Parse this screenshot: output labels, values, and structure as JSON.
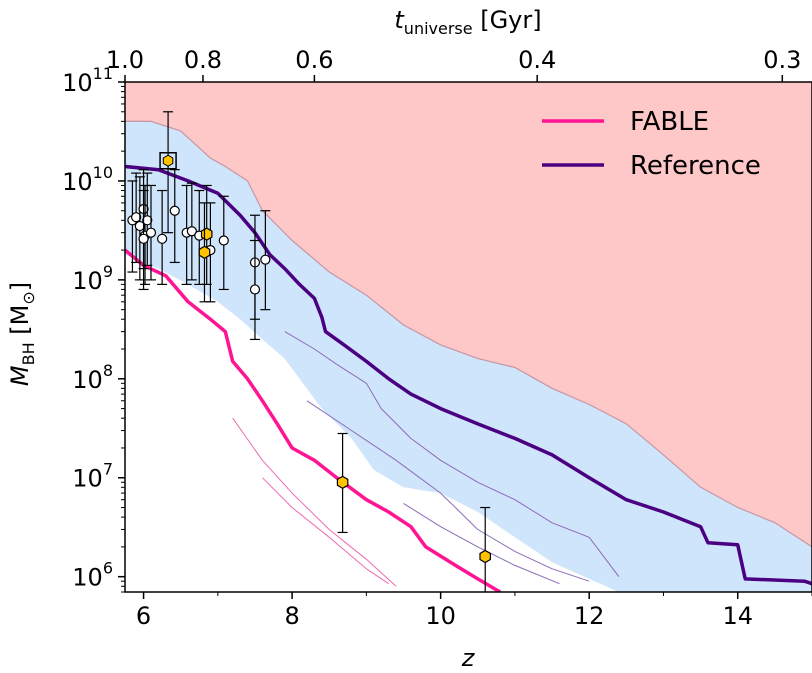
{
  "chart_data": {
    "type": "line",
    "x_axis": {
      "label": "z",
      "range": [
        5.75,
        15.0
      ],
      "ticks": [
        {
          "value": 6,
          "label": "6"
        },
        {
          "value": 8,
          "label": "8"
        },
        {
          "value": 10,
          "label": "10"
        },
        {
          "value": 12,
          "label": "12"
        },
        {
          "value": 14,
          "label": "14"
        }
      ]
    },
    "top_axis": {
      "label_main": "t",
      "label_sub": "universe",
      "label_unit": " [Gyr]",
      "ticks": [
        {
          "z": 5.75,
          "label": "1.0"
        },
        {
          "z": 6.8,
          "label": "0.8"
        },
        {
          "z": 8.3,
          "label": "0.6"
        },
        {
          "z": 11.3,
          "label": "0.4"
        },
        {
          "z": 14.6,
          "label": "0.3"
        }
      ]
    },
    "y_axis": {
      "label_main": "M",
      "label_sub": "BH",
      "label_unit": " [M",
      "label_sun": "⊙",
      "label_close": "]",
      "scale": "log",
      "range": [
        700000,
        100000000000
      ],
      "ticks": [
        {
          "value": 1000000,
          "base": "10",
          "exp": "6"
        },
        {
          "value": 10000000,
          "base": "10",
          "exp": "7"
        },
        {
          "value": 100000000,
          "base": "10",
          "exp": "8"
        },
        {
          "value": 1000000000,
          "base": "10",
          "exp": "9"
        },
        {
          "value": 10000000000,
          "base": "10",
          "exp": "10"
        },
        {
          "value": 100000000000,
          "base": "10",
          "exp": "11"
        }
      ]
    },
    "grid": false,
    "legend_position": "top-right",
    "colors": {
      "fable": "#ff1493",
      "fable_thin": "#f06ab0",
      "reference": "#4b0082",
      "reference_thin": "#8c6bb8",
      "band_fill": "#cfe5fb",
      "band_edge": "#a8c8e8",
      "excluded_fill": "#ffc8c8",
      "excluded_edge": "#c89aa8",
      "point_white": "#ffffff",
      "point_gold": "#ffc300"
    },
    "legend": [
      {
        "label": "FABLE",
        "series": "fable"
      },
      {
        "label": "Reference",
        "series": "reference"
      }
    ],
    "excluded_region": {
      "boundary": [
        [
          5.75,
          40000000000
        ],
        [
          6.1,
          40000000000
        ],
        [
          6.5,
          32000000000
        ],
        [
          6.9,
          17000000000
        ],
        [
          7.1,
          14000000000
        ],
        [
          7.4,
          10000000000
        ],
        [
          7.6,
          5000000000
        ],
        [
          8.0,
          2500000000
        ],
        [
          8.5,
          1200000000
        ],
        [
          9.0,
          700000000
        ],
        [
          9.5,
          350000000
        ],
        [
          10.0,
          220000000
        ],
        [
          10.5,
          160000000
        ],
        [
          11.0,
          130000000
        ],
        [
          11.5,
          80000000
        ],
        [
          12.0,
          55000000
        ],
        [
          12.5,
          35000000
        ],
        [
          13.0,
          17000000
        ],
        [
          13.5,
          8000000
        ],
        [
          14.0,
          5000000
        ],
        [
          14.5,
          3500000
        ],
        [
          15.0,
          2000000
        ]
      ]
    },
    "reference_band": {
      "upper": [
        [
          5.75,
          40000000000
        ],
        [
          6.1,
          40000000000
        ],
        [
          6.5,
          32000000000
        ],
        [
          6.9,
          17000000000
        ],
        [
          7.1,
          14000000000
        ],
        [
          7.4,
          10000000000
        ],
        [
          7.6,
          5000000000
        ],
        [
          8.0,
          2500000000
        ],
        [
          8.5,
          1200000000
        ],
        [
          9.0,
          700000000
        ],
        [
          9.5,
          350000000
        ],
        [
          10.0,
          220000000
        ],
        [
          10.5,
          160000000
        ],
        [
          11.0,
          130000000
        ],
        [
          11.5,
          80000000
        ],
        [
          12.0,
          55000000
        ],
        [
          12.5,
          35000000
        ],
        [
          13.0,
          17000000
        ],
        [
          13.5,
          8000000
        ],
        [
          14.0,
          5000000
        ],
        [
          14.5,
          3500000
        ],
        [
          15.0,
          2000000
        ]
      ],
      "lower": [
        [
          5.75,
          1800000000
        ],
        [
          6.2,
          1300000000
        ],
        [
          6.6,
          900000000
        ],
        [
          7.0,
          600000000
        ],
        [
          7.3,
          400000000
        ],
        [
          7.6,
          250000000
        ],
        [
          7.9,
          160000000
        ],
        [
          8.1,
          100000000
        ],
        [
          8.4,
          50000000
        ],
        [
          8.8,
          25000000
        ],
        [
          9.1,
          12000000
        ],
        [
          9.5,
          8000000
        ],
        [
          10.0,
          7000000
        ],
        [
          10.5,
          4500000
        ],
        [
          11.0,
          2500000
        ],
        [
          11.5,
          1400000
        ],
        [
          12.0,
          950000
        ],
        [
          12.4,
          700000
        ]
      ]
    },
    "series": [
      {
        "id": "reference",
        "name": "Reference",
        "width": 3.5,
        "points": [
          [
            5.75,
            14000000000
          ],
          [
            6.2,
            13000000000
          ],
          [
            6.6,
            10000000000
          ],
          [
            7.0,
            7500000000
          ],
          [
            7.3,
            4500000000
          ],
          [
            7.5,
            3000000000
          ],
          [
            7.7,
            1800000000
          ],
          [
            7.9,
            1300000000
          ],
          [
            8.1,
            900000000
          ],
          [
            8.3,
            650000000
          ],
          [
            8.4,
            420000000
          ],
          [
            8.45,
            300000000
          ],
          [
            8.7,
            220000000
          ],
          [
            9.0,
            150000000
          ],
          [
            9.3,
            100000000
          ],
          [
            9.6,
            70000000
          ],
          [
            10.0,
            50000000
          ],
          [
            10.5,
            35000000
          ],
          [
            11.0,
            25000000
          ],
          [
            11.5,
            17000000
          ],
          [
            12.0,
            10000000
          ],
          [
            12.5,
            6000000
          ],
          [
            13.0,
            4500000
          ],
          [
            13.5,
            3200000
          ],
          [
            13.6,
            2200000
          ],
          [
            14.0,
            2100000
          ],
          [
            14.1,
            950000
          ],
          [
            14.9,
            900000
          ],
          [
            15.0,
            850000
          ]
        ]
      },
      {
        "id": "fable",
        "name": "FABLE",
        "width": 3.5,
        "points": [
          [
            5.75,
            2000000000
          ],
          [
            6.0,
            1400000000
          ],
          [
            6.3,
            1100000000
          ],
          [
            6.6,
            600000000
          ],
          [
            6.9,
            400000000
          ],
          [
            7.1,
            300000000
          ],
          [
            7.2,
            150000000
          ],
          [
            7.4,
            100000000
          ],
          [
            7.6,
            60000000
          ],
          [
            7.8,
            35000000
          ],
          [
            8.0,
            20000000
          ],
          [
            8.3,
            15000000
          ],
          [
            8.6,
            10000000
          ],
          [
            9.0,
            6000000
          ],
          [
            9.3,
            4500000
          ],
          [
            9.6,
            3200000
          ],
          [
            9.8,
            2000000
          ],
          [
            10.2,
            1300000
          ],
          [
            10.5,
            950000
          ],
          [
            10.8,
            700000
          ]
        ]
      },
      {
        "id": "reference_thin_1",
        "width": 1,
        "points": [
          [
            7.9,
            300000000
          ],
          [
            8.3,
            200000000
          ],
          [
            8.6,
            140000000
          ],
          [
            9.0,
            90000000
          ],
          [
            9.2,
            50000000
          ],
          [
            9.6,
            25000000
          ],
          [
            10.0,
            15000000
          ],
          [
            10.5,
            9000000
          ],
          [
            11.0,
            6000000
          ],
          [
            11.5,
            3500000
          ],
          [
            12.0,
            2500000
          ],
          [
            12.4,
            1000000
          ]
        ]
      },
      {
        "id": "reference_thin_2",
        "width": 1,
        "points": [
          [
            8.2,
            60000000
          ],
          [
            8.8,
            30000000
          ],
          [
            9.4,
            15000000
          ],
          [
            10.0,
            7000000
          ],
          [
            10.5,
            3000000
          ],
          [
            11.0,
            1800000
          ],
          [
            11.5,
            1200000
          ],
          [
            12.0,
            900000
          ]
        ]
      },
      {
        "id": "reference_thin_3",
        "width": 1,
        "points": [
          [
            9.5,
            5500000
          ],
          [
            10.0,
            3200000
          ],
          [
            10.5,
            2000000
          ],
          [
            11.0,
            1300000
          ],
          [
            11.6,
            850000
          ]
        ]
      },
      {
        "id": "fable_thin_1",
        "width": 1,
        "points": [
          [
            7.2,
            40000000
          ],
          [
            7.6,
            15000000
          ],
          [
            8.0,
            7000000
          ],
          [
            8.5,
            3000000
          ],
          [
            9.0,
            1500000
          ],
          [
            9.4,
            800000
          ]
        ]
      },
      {
        "id": "fable_thin_2",
        "width": 1,
        "points": [
          [
            7.6,
            10000000
          ],
          [
            8.0,
            5000000
          ],
          [
            8.5,
            2500000
          ],
          [
            9.0,
            1200000
          ],
          [
            9.3,
            850000
          ]
        ]
      }
    ],
    "observations": [
      {
        "z": 5.85,
        "m": 4000000000,
        "lo": 1200000000,
        "hi": 10000000000,
        "marker": "circle"
      },
      {
        "z": 5.9,
        "m": 4300000000,
        "lo": 1500000000,
        "hi": 12000000000,
        "marker": "circle"
      },
      {
        "z": 5.95,
        "m": 3500000000,
        "lo": 1000000000,
        "hi": 11000000000,
        "marker": "circle"
      },
      {
        "z": 6.0,
        "m": 5200000000,
        "lo": 1300000000,
        "hi": 13000000000,
        "marker": "circle"
      },
      {
        "z": 6.02,
        "m": 2800000000,
        "lo": 900000000,
        "hi": 9000000000,
        "marker": "circle"
      },
      {
        "z": 6.05,
        "m": 4000000000,
        "lo": 1400000000,
        "hi": 12000000000,
        "marker": "circle"
      },
      {
        "z": 6.1,
        "m": 3000000000,
        "lo": 1000000000,
        "hi": 9000000000,
        "marker": "circle"
      },
      {
        "z": 6.0,
        "m": 2600000000,
        "lo": 800000000,
        "hi": 8000000000,
        "marker": "circle"
      },
      {
        "z": 6.25,
        "m": 2600000000,
        "lo": 900000000,
        "hi": 8000000000,
        "marker": "circle"
      },
      {
        "z": 6.42,
        "m": 5000000000,
        "lo": 1500000000,
        "hi": 13000000000,
        "marker": "circle"
      },
      {
        "z": 6.58,
        "m": 3000000000,
        "lo": 900000000,
        "hi": 9000000000,
        "marker": "circle"
      },
      {
        "z": 6.65,
        "m": 3100000000,
        "lo": 1000000000,
        "hi": 9500000000,
        "marker": "circle"
      },
      {
        "z": 6.75,
        "m": 2800000000,
        "lo": 900000000,
        "hi": 8000000000,
        "marker": "circle"
      },
      {
        "z": 6.9,
        "m": 2000000000,
        "lo": 600000000,
        "hi": 6000000000,
        "marker": "circle"
      },
      {
        "z": 7.08,
        "m": 2500000000,
        "lo": 800000000,
        "hi": 7000000000,
        "marker": "circle"
      },
      {
        "z": 7.5,
        "m": 1500000000,
        "lo": 400000000,
        "hi": 4500000000,
        "marker": "circle"
      },
      {
        "z": 7.5,
        "m": 800000000,
        "lo": 250000000,
        "hi": 2500000000,
        "marker": "circle"
      },
      {
        "z": 7.64,
        "m": 1600000000,
        "lo": 500000000,
        "hi": 5000000000,
        "marker": "circle"
      },
      {
        "z": 6.33,
        "m": 16000000000,
        "lo": 3000000000,
        "hi": 50000000000,
        "marker": "square_gold"
      },
      {
        "z": 6.85,
        "m": 2900000000,
        "lo": 900000000,
        "hi": 9000000000,
        "marker": "hexagon"
      },
      {
        "z": 6.82,
        "m": 1900000000,
        "lo": 600000000,
        "hi": 6000000000,
        "marker": "hexagon"
      },
      {
        "z": 8.68,
        "m": 9000000,
        "lo": 2800000,
        "hi": 28000000,
        "marker": "hexagon"
      },
      {
        "z": 10.6,
        "m": 1600000,
        "lo": 500000,
        "hi": 5000000,
        "marker": "hexagon"
      }
    ]
  }
}
